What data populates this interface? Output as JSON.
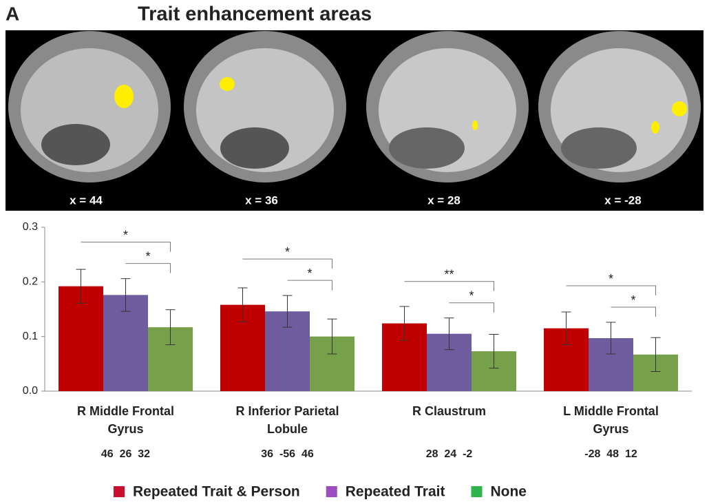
{
  "panel_label": "A",
  "title": "Trait enhancement areas",
  "slice_labels": [
    "x = 44",
    "x = 36",
    "x = 28",
    "x = -28"
  ],
  "chart_data": {
    "type": "bar",
    "categories": [
      [
        "R Middle Frontal",
        "Gyrus"
      ],
      [
        "R Inferior Parietal",
        "Lobule"
      ],
      [
        "R Claustrum"
      ],
      [
        "L Middle Frontal",
        "Gyrus"
      ]
    ],
    "coordinates": [
      "46  26  32",
      "36  -56  46",
      "28  24  -2",
      "-28  48  12"
    ],
    "series": [
      {
        "name": "Repeated Trait & Person",
        "color": "#c00000",
        "legend_color": "#c8102e",
        "values": [
          0.192,
          0.158,
          0.124,
          0.115
        ],
        "errors": [
          0.031,
          0.031,
          0.031,
          0.03
        ]
      },
      {
        "name": "Repeated Trait",
        "color": "#6f5c9e",
        "legend_color": "#9b4fbf",
        "values": [
          0.176,
          0.146,
          0.105,
          0.097
        ],
        "errors": [
          0.03,
          0.029,
          0.029,
          0.029
        ]
      },
      {
        "name": "None",
        "color": "#77a04a",
        "legend_color": "#2fb34a",
        "values": [
          0.117,
          0.1,
          0.073,
          0.067
        ],
        "errors": [
          0.032,
          0.032,
          0.031,
          0.031
        ]
      }
    ],
    "significance": [
      [
        "*",
        "*"
      ],
      [
        "*",
        "*"
      ],
      [
        "**",
        "*"
      ],
      [
        "*",
        "*"
      ]
    ],
    "ylim": [
      0,
      0.3
    ],
    "yticks": [
      {
        "value": 0,
        "label": "0.0"
      },
      0.1,
      0.2,
      0.3
    ],
    "grid": false
  }
}
